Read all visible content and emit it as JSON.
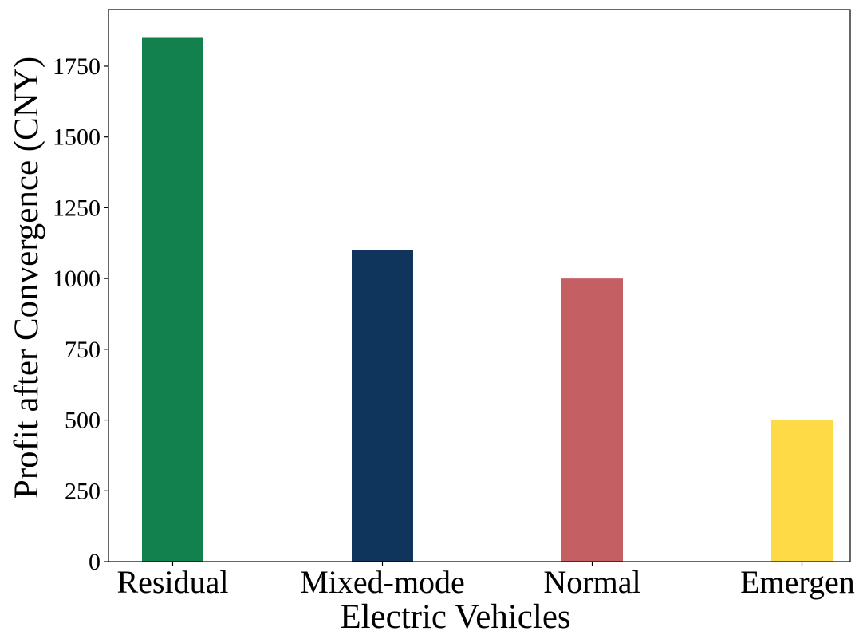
{
  "chart_data": {
    "type": "bar",
    "title": "",
    "xlabel": "Electric Vehicles",
    "ylabel": "Profit after Convergence (CNY)",
    "categories": [
      "Residual",
      "Mixed-mode",
      "Normal",
      "Emergent"
    ],
    "values": [
      1850,
      1100,
      1000,
      500
    ],
    "colors": [
      "#13814E",
      "#0F355C",
      "#C46064",
      "#FFDA47"
    ],
    "ylim": [
      0,
      1950
    ],
    "yticks": [
      0,
      250,
      500,
      750,
      1000,
      1250,
      1500,
      1750
    ],
    "grid": false,
    "legend": false
  }
}
